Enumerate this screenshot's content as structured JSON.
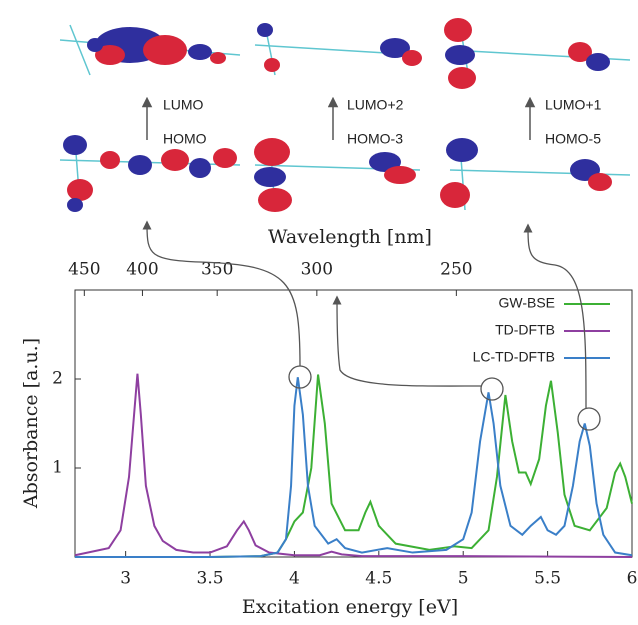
{
  "chart_data": {
    "type": "line",
    "x_label": "Excitation energy [eV]",
    "y_label": "Absorbance [a.u.]",
    "x2_label": "Wavelength [nm]",
    "xlim": [
      2.7,
      6.0
    ],
    "ylim": [
      0,
      3
    ],
    "xticks": [
      3,
      3.5,
      4,
      4.5,
      5,
      5.5,
      6
    ],
    "yticks": [
      1,
      2
    ],
    "x2ticks": [
      450,
      400,
      350,
      300,
      250
    ],
    "legend": "upper right",
    "series": [
      {
        "name": "GW-BSE",
        "color": "#3cb034",
        "x": [
          2.7,
          3.5,
          3.8,
          3.9,
          3.95,
          4.0,
          4.05,
          4.1,
          4.14,
          4.18,
          4.22,
          4.3,
          4.38,
          4.42,
          4.45,
          4.5,
          4.6,
          4.8,
          4.95,
          5.05,
          5.15,
          5.2,
          5.25,
          5.29,
          5.33,
          5.37,
          5.4,
          5.45,
          5.49,
          5.52,
          5.56,
          5.6,
          5.66,
          5.75,
          5.85,
          5.9,
          5.93,
          5.96,
          6.0
        ],
        "values": [
          0,
          0,
          0.01,
          0.05,
          0.2,
          0.4,
          0.5,
          1.0,
          2.05,
          1.5,
          0.6,
          0.3,
          0.3,
          0.5,
          0.62,
          0.35,
          0.15,
          0.08,
          0.12,
          0.1,
          0.3,
          0.9,
          1.82,
          1.3,
          0.95,
          0.95,
          0.82,
          1.1,
          1.7,
          1.98,
          1.4,
          0.7,
          0.35,
          0.3,
          0.55,
          0.95,
          1.05,
          0.9,
          0.6
        ]
      },
      {
        "name": "TD-DFTB",
        "color": "#8e3fa0",
        "x": [
          2.7,
          2.9,
          2.97,
          3.02,
          3.05,
          3.07,
          3.09,
          3.12,
          3.17,
          3.22,
          3.3,
          3.4,
          3.5,
          3.6,
          3.66,
          3.7,
          3.73,
          3.77,
          3.85,
          4.0,
          4.15,
          4.22,
          4.28,
          4.4,
          5.0,
          6.0
        ],
        "values": [
          0.02,
          0.1,
          0.3,
          0.9,
          1.6,
          2.06,
          1.6,
          0.8,
          0.35,
          0.18,
          0.08,
          0.05,
          0.05,
          0.12,
          0.3,
          0.4,
          0.3,
          0.13,
          0.05,
          0.02,
          0.02,
          0.06,
          0.03,
          0.01,
          0.01,
          0
        ]
      },
      {
        "name": "LC-TD-DFTB",
        "color": "#3a7fc8",
        "x": [
          2.7,
          3.5,
          3.8,
          3.9,
          3.95,
          3.98,
          4.0,
          4.02,
          4.05,
          4.08,
          4.12,
          4.2,
          4.25,
          4.3,
          4.4,
          4.55,
          4.7,
          4.9,
          5.0,
          5.05,
          5.1,
          5.15,
          5.18,
          5.22,
          5.28,
          5.35,
          5.4,
          5.46,
          5.5,
          5.55,
          5.6,
          5.65,
          5.69,
          5.72,
          5.75,
          5.79,
          5.83,
          5.9,
          6.0
        ],
        "values": [
          0,
          0,
          0.01,
          0.05,
          0.2,
          0.8,
          1.7,
          2.02,
          1.6,
          0.8,
          0.35,
          0.15,
          0.2,
          0.1,
          0.05,
          0.1,
          0.05,
          0.08,
          0.2,
          0.5,
          1.3,
          1.85,
          1.5,
          0.8,
          0.35,
          0.25,
          0.35,
          0.45,
          0.3,
          0.25,
          0.35,
          0.8,
          1.3,
          1.5,
          1.25,
          0.6,
          0.25,
          0.05,
          0.02
        ]
      }
    ]
  },
  "orbitals": [
    {
      "upper": "LUMO",
      "lower": "HOMO"
    },
    {
      "upper": "LUMO+2",
      "lower": "HOMO-3"
    },
    {
      "upper": "LUMO+1",
      "lower": "HOMO-5"
    }
  ]
}
